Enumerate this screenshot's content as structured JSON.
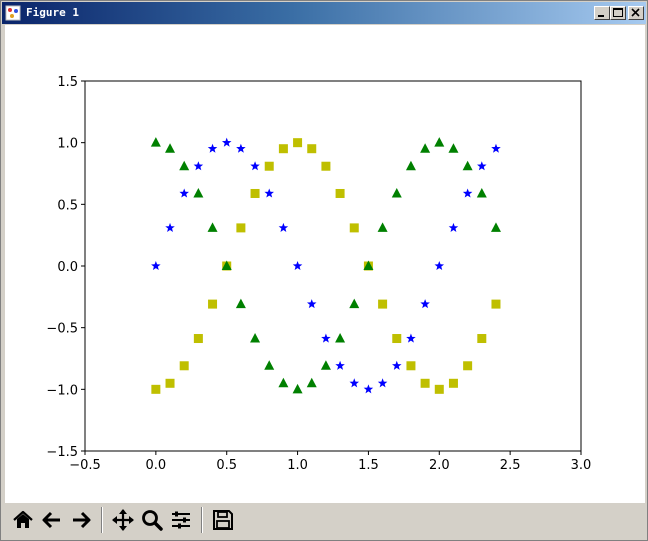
{
  "window": {
    "title": "Figure 1",
    "controls": {
      "minimize": "minimize-icon",
      "maximize": "maximize-icon",
      "close": "close-icon"
    }
  },
  "toolbar": {
    "buttons": [
      {
        "name": "home",
        "icon": "home-icon"
      },
      {
        "name": "back",
        "icon": "arrow-left-icon"
      },
      {
        "name": "forward",
        "icon": "arrow-right-icon"
      },
      {
        "name": "pan",
        "icon": "move-icon"
      },
      {
        "name": "zoom",
        "icon": "magnifier-icon"
      },
      {
        "name": "configure-subplots",
        "icon": "sliders-icon"
      },
      {
        "name": "save",
        "icon": "floppy-disk-icon"
      }
    ]
  },
  "chart_data": {
    "type": "scatter",
    "title": "",
    "xlabel": "",
    "ylabel": "",
    "xlim": [
      -0.5,
      3.0
    ],
    "ylim": [
      -1.5,
      1.5
    ],
    "xticks": [
      "−0.5",
      "0.0",
      "0.5",
      "1.0",
      "1.5",
      "2.0",
      "2.5",
      "3.0"
    ],
    "yticks": [
      "−1.5",
      "−1.0",
      "−0.5",
      "0.0",
      "0.5",
      "1.0",
      "1.5"
    ],
    "xtick_values": [
      -0.5,
      0.0,
      0.5,
      1.0,
      1.5,
      2.0,
      2.5,
      3.0
    ],
    "ytick_values": [
      -1.5,
      -1.0,
      -0.5,
      0.0,
      0.5,
      1.0,
      1.5
    ],
    "grid": false,
    "legend": false,
    "x": [
      0.0,
      0.1,
      0.2,
      0.3,
      0.4,
      0.5,
      0.6,
      0.7,
      0.8,
      0.9,
      1.0,
      1.1,
      1.2,
      1.3,
      1.4,
      1.5,
      1.6,
      1.7,
      1.8,
      1.9,
      2.0,
      2.1,
      2.2,
      2.3,
      2.4
    ],
    "series": [
      {
        "marker": "star",
        "color": "#0000ff",
        "values": [
          0.0,
          0.309,
          0.588,
          0.809,
          0.951,
          1.0,
          0.951,
          0.809,
          0.588,
          0.309,
          0.0,
          -0.309,
          -0.588,
          -0.809,
          -0.951,
          -1.0,
          -0.951,
          -0.809,
          -0.588,
          -0.309,
          0.0,
          0.309,
          0.588,
          0.809,
          0.951
        ]
      },
      {
        "marker": "square",
        "color": "#bfbf00",
        "values": [
          -1.0,
          -0.951,
          -0.809,
          -0.588,
          -0.309,
          0.0,
          0.309,
          0.588,
          0.809,
          0.951,
          1.0,
          0.951,
          0.809,
          0.588,
          0.309,
          0.0,
          -0.309,
          -0.588,
          -0.809,
          -0.951,
          -1.0,
          -0.951,
          -0.809,
          -0.588,
          -0.309
        ]
      },
      {
        "marker": "triangle",
        "color": "#008000",
        "values": [
          1.0,
          0.951,
          0.809,
          0.588,
          0.309,
          0.0,
          -0.309,
          -0.588,
          -0.809,
          -0.951,
          -1.0,
          -0.951,
          -0.809,
          -0.588,
          -0.309,
          0.0,
          0.309,
          0.588,
          0.809,
          0.951,
          1.0,
          0.951,
          0.809,
          0.588,
          0.309
        ]
      }
    ]
  }
}
